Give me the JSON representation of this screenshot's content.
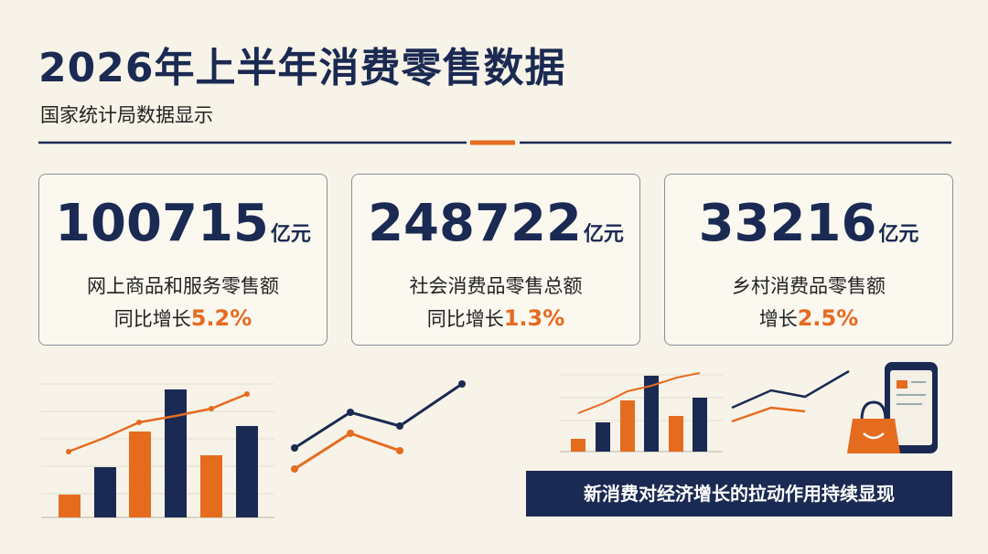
{
  "header": {
    "title": "2026年上半年消费零售数据",
    "subtitle": "国家统计局数据显示"
  },
  "cards": [
    {
      "value": 100715,
      "unit": "亿元",
      "label": "网上商品和服务零售额",
      "growth_prefix": "同比增长",
      "growth": "5.2%"
    },
    {
      "value": 248722,
      "unit": "亿元",
      "label": "社会消费品零售总额",
      "growth_prefix": "同比增长",
      "growth": "1.3%"
    },
    {
      "value": 33216,
      "unit": "亿元",
      "label": "乡村消费品零售额",
      "growth_prefix": "增长",
      "growth": "2.5%"
    }
  ],
  "banner": "新消费对经济增长的拉动作用持续显现"
}
